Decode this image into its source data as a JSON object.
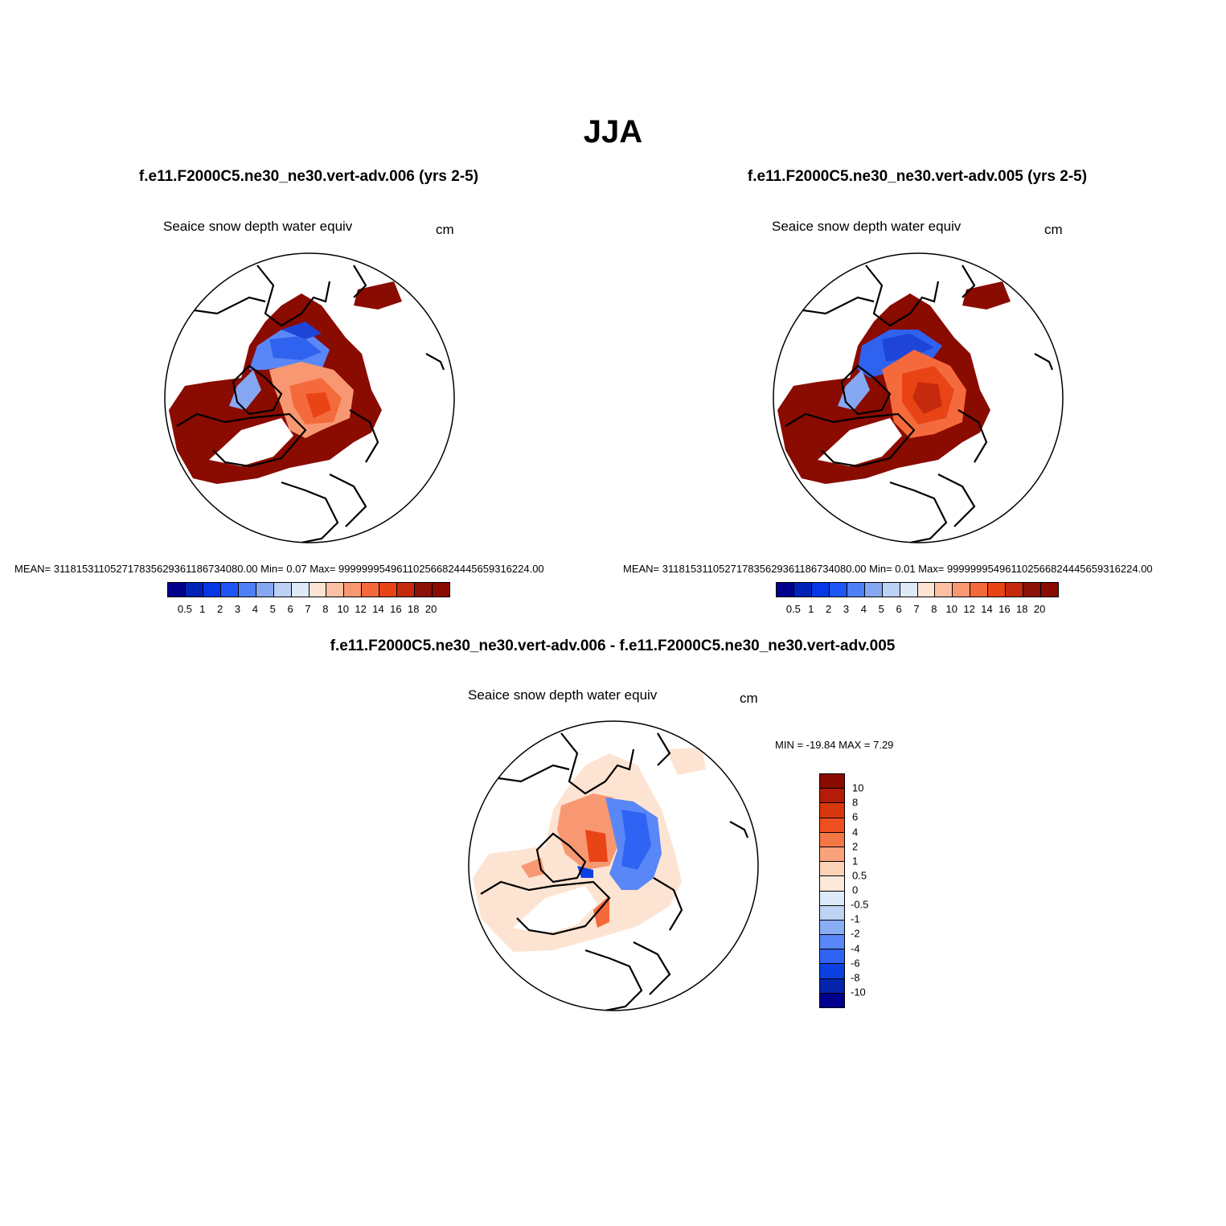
{
  "title": "JJA",
  "panels": [
    {
      "case_title": "f.e11.F2000C5.ne30_ne30.vert-adv.006 (yrs 2-5)",
      "variable": "Seaice snow depth water equiv",
      "units": "cm",
      "stats": "MEAN= 311815311052717835629361186734080.00  Min=    0.07  Max= 999999954961102566824445659316224.00"
    },
    {
      "case_title": "f.e11.F2000C5.ne30_ne30.vert-adv.005 (yrs 2-5)",
      "variable": "Seaice snow depth water equiv",
      "units": "cm",
      "stats": "MEAN= 311815311052717835629361186734080.00  Min=    0.01  Max= 999999954961102566824445659316224.00"
    }
  ],
  "colorbar_levels": [
    "0.5",
    "1",
    "2",
    "3",
    "4",
    "5",
    "6",
    "7",
    "8",
    "10",
    "12",
    "14",
    "16",
    "18",
    "20"
  ],
  "colorbar_colors": [
    "#00008c",
    "#0022b4",
    "#0537e6",
    "#1f55f5",
    "#4f7ff7",
    "#86a7f2",
    "#bcd1f5",
    "#dfeaf8",
    "#fde4d2",
    "#fbc0a3",
    "#f89872",
    "#f56a3c",
    "#e94416",
    "#c52a0c",
    "#8a1209",
    "#8a0b00"
  ],
  "diff_panel": {
    "title": "f.e11.F2000C5.ne30_ne30.vert-adv.006 - f.e11.F2000C5.ne30_ne30.vert-adv.005",
    "variable": "Seaice snow depth water equiv",
    "units": "cm",
    "stats": "MIN = -19.84 MAX =    7.29",
    "colorbar_levels": [
      "10",
      "8",
      "6",
      "4",
      "2",
      "1",
      "0.5",
      "0",
      "-0.5",
      "-1",
      "-2",
      "-4",
      "-6",
      "-8",
      "-10"
    ],
    "colorbar_colors": [
      "#8a0b00",
      "#b31d07",
      "#d8370e",
      "#ee5020",
      "#f57745",
      "#f9a27b",
      "#fcd2b6",
      "#fde9da",
      "#dce9f8",
      "#bfd4f5",
      "#8aaef6",
      "#5a87f7",
      "#2f63f4",
      "#0c40e0",
      "#0324ab",
      "#00008c"
    ]
  }
}
